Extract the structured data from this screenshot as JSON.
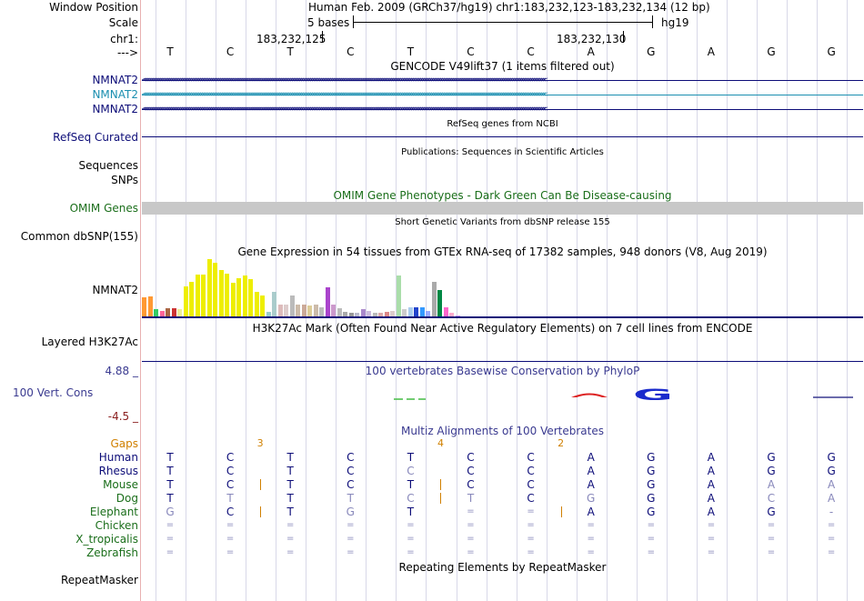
{
  "header": {
    "window_position_label": "Window Position",
    "window_position_text": "Human Feb. 2009 (GRCh37/hg19)   chr1:183,232,123-183,232,134 (12 bp)",
    "scale_label": "Scale",
    "scale_text": "5 bases",
    "scale_db": "hg19",
    "chrom_label": "chr1:",
    "coord_1": "183,232,125",
    "coord_2": "183,232,130",
    "strand_label": "--->"
  },
  "sequence": [
    "T",
    "C",
    "T",
    "C",
    "T",
    "C",
    "C",
    "A",
    "G",
    "A",
    "G",
    "G"
  ],
  "gencode": {
    "title": "GENCODE V49lift37 (1 items filtered out)",
    "transcripts": [
      {
        "name": "NMNAT2",
        "color": "#0c0c78"
      },
      {
        "name": "NMNAT2",
        "color": "#1b8fb0"
      },
      {
        "name": "NMNAT2",
        "color": "#0c0c78"
      }
    ]
  },
  "refseq": {
    "title": "RefSeq genes from NCBI",
    "label": "RefSeq Curated"
  },
  "publications": {
    "title": "Publications: Sequences in Scientific Articles",
    "label1": "Sequences",
    "label2": "SNPs"
  },
  "omim": {
    "title": "OMIM Gene Phenotypes - Dark Green Can Be Disease-causing",
    "label": "OMIM Genes"
  },
  "dbsnp": {
    "title": "Short Genetic Variants from dbSNP release 155",
    "label": "Common dbSNP(155)"
  },
  "gtex": {
    "title": "Gene Expression in 54 tissues from GTEx RNA-seq of 17382 samples, 948 donors (V8, Aug 2019)",
    "label": "NMNAT2",
    "tissues": [
      {
        "v": 0.33,
        "c": "#ff9933"
      },
      {
        "v": 0.35,
        "c": "#ff9933"
      },
      {
        "v": 0.12,
        "c": "#33cc66"
      },
      {
        "v": 0.1,
        "c": "#ff6699"
      },
      {
        "v": 0.14,
        "c": "#aa6644"
      },
      {
        "v": 0.14,
        "c": "#cc3333"
      },
      {
        "v": 0.12,
        "c": "#eeee99"
      },
      {
        "v": 0.52,
        "c": "#eeee00"
      },
      {
        "v": 0.6,
        "c": "#eeee00"
      },
      {
        "v": 0.72,
        "c": "#eeee00"
      },
      {
        "v": 0.72,
        "c": "#eeee00"
      },
      {
        "v": 0.98,
        "c": "#eeee00"
      },
      {
        "v": 0.92,
        "c": "#eeee00"
      },
      {
        "v": 0.8,
        "c": "#eeee00"
      },
      {
        "v": 0.74,
        "c": "#eeee00"
      },
      {
        "v": 0.58,
        "c": "#eeee00"
      },
      {
        "v": 0.66,
        "c": "#eeee00"
      },
      {
        "v": 0.7,
        "c": "#eeee00"
      },
      {
        "v": 0.64,
        "c": "#eeee00"
      },
      {
        "v": 0.42,
        "c": "#eeee00"
      },
      {
        "v": 0.36,
        "c": "#eeee00"
      },
      {
        "v": 0.08,
        "c": "#99cccc"
      },
      {
        "v": 0.42,
        "c": "#aacccc"
      },
      {
        "v": 0.2,
        "c": "#ddbbbb"
      },
      {
        "v": 0.2,
        "c": "#ddcccc"
      },
      {
        "v": 0.36,
        "c": "#bbbbbb"
      },
      {
        "v": 0.2,
        "c": "#ccbbaa"
      },
      {
        "v": 0.2,
        "c": "#ccaa99"
      },
      {
        "v": 0.18,
        "c": "#ddcc99"
      },
      {
        "v": 0.2,
        "c": "#ccbbaa"
      },
      {
        "v": 0.16,
        "c": "#bbbbbb"
      },
      {
        "v": 0.5,
        "c": "#aa44cc"
      },
      {
        "v": 0.2,
        "c": "#cc99cc"
      },
      {
        "v": 0.14,
        "c": "#bbbbbb"
      },
      {
        "v": 0.08,
        "c": "#aaaaaa"
      },
      {
        "v": 0.06,
        "c": "#999999"
      },
      {
        "v": 0.06,
        "c": "#bbbbcc"
      },
      {
        "v": 0.12,
        "c": "#aa88cc"
      },
      {
        "v": 0.1,
        "c": "#ccbbdd"
      },
      {
        "v": 0.06,
        "c": "#bbbbbb"
      },
      {
        "v": 0.06,
        "c": "#ddaaaa"
      },
      {
        "v": 0.08,
        "c": "#dd8888"
      },
      {
        "v": 0.1,
        "c": "#ddcccc"
      },
      {
        "v": 0.7,
        "c": "#aaddaa"
      },
      {
        "v": 0.12,
        "c": "#cccccc"
      },
      {
        "v": 0.16,
        "c": "#aaccee"
      },
      {
        "v": 0.16,
        "c": "#2244cc"
      },
      {
        "v": 0.16,
        "c": "#3399ff"
      },
      {
        "v": 0.1,
        "c": "#99aaff"
      },
      {
        "v": 0.6,
        "c": "#aaaaaa"
      },
      {
        "v": 0.46,
        "c": "#008844"
      },
      {
        "v": 0.16,
        "c": "#ff66cc"
      },
      {
        "v": 0.06,
        "c": "#ffaacc"
      },
      {
        "v": 0.02,
        "c": "#cc99ff"
      }
    ]
  },
  "h3k27ac": {
    "title": "H3K27Ac Mark (Often Found Near Active Regulatory Elements) on 7 cell lines from ENCODE",
    "label": "Layered H3K27Ac"
  },
  "phylop": {
    "title": "100 vertebrates Basewise Conservation by PhyloP",
    "label": "100 Vert. Cons",
    "max": "4.88 _",
    "min": "-4.5 _"
  },
  "multiz": {
    "title": "Multiz Alignments of 100 Vertebrates",
    "gaps_label": "Gaps",
    "gaps": [
      {
        "n": "3",
        "pos": 1.5
      },
      {
        "n": "4",
        "pos": 4.5
      },
      {
        "n": "2",
        "pos": 6.5
      }
    ],
    "species": [
      {
        "name": "Human",
        "color": "#0c0c78",
        "seq": [
          "T",
          "C",
          "T",
          "C",
          "T",
          "C",
          "C",
          "A",
          "G",
          "A",
          "G",
          "G"
        ],
        "dim": []
      },
      {
        "name": "Rhesus",
        "color": "#0c0c78",
        "seq": [
          "T",
          "C",
          "T",
          "C",
          "C",
          "C",
          "C",
          "A",
          "G",
          "A",
          "G",
          "G"
        ],
        "dim": [
          4
        ]
      },
      {
        "name": "Mouse",
        "color": "#1a6e1a",
        "seq": [
          "T",
          "C",
          "T",
          "C",
          "T",
          "C",
          "C",
          "A",
          "G",
          "A",
          "A",
          "A"
        ],
        "dim": [
          10,
          11
        ],
        "ins": [
          1.5,
          4.5
        ]
      },
      {
        "name": "Dog",
        "color": "#1a6e1a",
        "seq": [
          "T",
          "T",
          "T",
          "T",
          "C",
          "T",
          "C",
          "G",
          "G",
          "A",
          "C",
          "A"
        ],
        "dim": [
          1,
          3,
          4,
          5,
          7,
          10,
          11
        ],
        "ins": [
          4.5
        ]
      },
      {
        "name": "Elephant",
        "color": "#1a6e1a",
        "seq": [
          "G",
          "C",
          "T",
          "G",
          "T",
          "=",
          "=",
          "A",
          "G",
          "A",
          "G",
          "-"
        ],
        "dim": [
          0,
          3,
          5,
          6,
          11
        ],
        "ins": [
          1.5,
          6.5
        ]
      },
      {
        "name": "Chicken",
        "color": "#1a6e1a",
        "seq": [
          "=",
          "=",
          "=",
          "=",
          "=",
          "=",
          "=",
          "=",
          "=",
          "=",
          "=",
          "="
        ],
        "dim": [
          0,
          1,
          2,
          3,
          4,
          5,
          6,
          7,
          8,
          9,
          10,
          11
        ]
      },
      {
        "name": "X_tropicalis",
        "color": "#1a6e1a",
        "seq": [
          "=",
          "=",
          "=",
          "=",
          "=",
          "=",
          "=",
          "=",
          "=",
          "=",
          "=",
          "="
        ],
        "dim": [
          0,
          1,
          2,
          3,
          4,
          5,
          6,
          7,
          8,
          9,
          10,
          11
        ]
      },
      {
        "name": "Zebrafish",
        "color": "#1a6e1a",
        "seq": [
          "=",
          "=",
          "=",
          "=",
          "=",
          "=",
          "=",
          "=",
          "=",
          "=",
          "=",
          "="
        ],
        "dim": [
          0,
          1,
          2,
          3,
          4,
          5,
          6,
          7,
          8,
          9,
          10,
          11
        ]
      }
    ]
  },
  "repeatmasker": {
    "title": "Repeating Elements by RepeatMasker",
    "label": "RepeatMasker"
  }
}
